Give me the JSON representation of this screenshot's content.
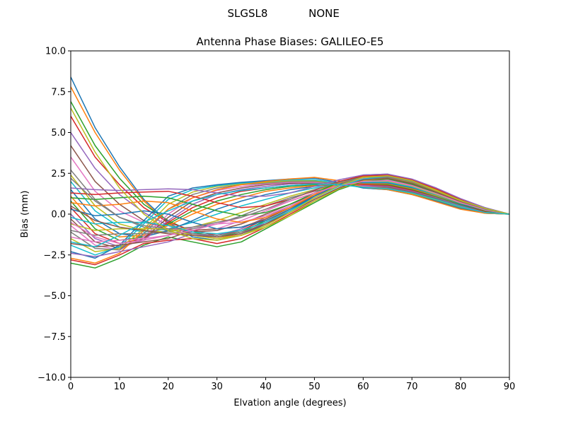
{
  "figure": {
    "suptitle_left": "SLGSL8",
    "suptitle_right": "NONE"
  },
  "chart_data": {
    "type": "line",
    "title": "Antenna Phase Biases: GALILEO-E5",
    "xlabel": "Elvation angle (degrees)",
    "ylabel": "Bias (mm)",
    "xlim": [
      0,
      90
    ],
    "ylim": [
      -10,
      10
    ],
    "xticks": [
      0,
      10,
      20,
      30,
      40,
      50,
      60,
      70,
      80,
      90
    ],
    "xtick_labels": [
      "0",
      "10",
      "20",
      "30",
      "40",
      "50",
      "60",
      "70",
      "80",
      "90"
    ],
    "yticks": [
      10,
      7.5,
      5,
      2.5,
      0,
      -2.5,
      -5,
      -7.5,
      -10
    ],
    "ytick_labels": [
      "10.0",
      "7.5",
      "5.0",
      "2.5",
      "0.0",
      "−2.5",
      "−5.0",
      "−7.5",
      "−10.0"
    ],
    "grid": false,
    "legend": "none",
    "colors": [
      "#1f77b4",
      "#ff7f0e",
      "#2ca02c",
      "#d62728",
      "#9467bd",
      "#8c564b",
      "#e377c2",
      "#7f7f7f",
      "#bcbd22",
      "#17becf"
    ],
    "x": [
      0,
      5,
      10,
      15,
      20,
      25,
      30,
      35,
      40,
      45,
      50,
      55,
      60,
      65,
      70,
      75,
      80,
      85,
      90
    ],
    "series": [
      {
        "values": [
          8.4,
          5.3,
          2.9,
          0.9,
          -0.5,
          -1.4,
          -1.6,
          -1.3,
          -0.6,
          0.2,
          1.1,
          1.9,
          2.4,
          2.45,
          2.1,
          1.5,
          0.9,
          0.4,
          0.0
        ]
      },
      {
        "values": [
          7.8,
          5.0,
          2.7,
          0.8,
          -0.6,
          -1.3,
          -1.5,
          -1.2,
          -0.5,
          0.3,
          1.2,
          1.85,
          2.3,
          2.35,
          2.0,
          1.45,
          0.85,
          0.35,
          0.0
        ]
      },
      {
        "values": [
          6.9,
          4.2,
          2.2,
          0.6,
          -0.4,
          -1.1,
          -1.4,
          -1.1,
          -0.4,
          0.3,
          1.1,
          1.8,
          2.2,
          2.3,
          1.95,
          1.4,
          0.8,
          0.3,
          0.0
        ]
      },
      {
        "values": [
          6.0,
          3.5,
          1.8,
          0.4,
          -0.5,
          -1.0,
          -1.3,
          -1.0,
          -0.3,
          0.4,
          1.2,
          1.8,
          2.2,
          2.25,
          1.9,
          1.35,
          0.8,
          0.3,
          0.0
        ]
      },
      {
        "values": [
          5.0,
          2.8,
          1.2,
          0.1,
          -0.7,
          -1.2,
          -1.3,
          -0.9,
          -0.2,
          0.5,
          1.2,
          1.75,
          2.1,
          2.2,
          1.85,
          1.3,
          0.75,
          0.3,
          0.0
        ]
      },
      {
        "values": [
          4.2,
          2.0,
          0.6,
          -0.4,
          -0.9,
          -1.1,
          -1.0,
          -0.6,
          0.0,
          0.6,
          1.2,
          1.7,
          2.1,
          2.15,
          1.8,
          1.3,
          0.7,
          0.25,
          0.0
        ]
      },
      {
        "values": [
          3.5,
          1.4,
          0.2,
          -0.5,
          -0.9,
          -1.0,
          -0.9,
          -0.4,
          0.2,
          0.8,
          1.3,
          1.75,
          2.0,
          2.1,
          1.75,
          1.25,
          0.7,
          0.25,
          0.0
        ]
      },
      {
        "values": [
          2.7,
          0.9,
          -0.2,
          -0.8,
          -1.0,
          -0.9,
          -0.6,
          -0.1,
          0.5,
          1.0,
          1.4,
          1.75,
          2.0,
          2.05,
          1.7,
          1.2,
          0.65,
          0.2,
          0.0
        ]
      },
      {
        "values": [
          2.4,
          0.5,
          -0.6,
          -1.0,
          -1.1,
          -0.8,
          -0.4,
          0.1,
          0.6,
          1.1,
          1.5,
          1.8,
          2.0,
          2.0,
          1.7,
          1.2,
          0.65,
          0.2,
          0.0
        ]
      },
      {
        "values": [
          2.0,
          0.2,
          -0.8,
          -1.1,
          -0.9,
          -0.5,
          0.0,
          0.5,
          0.9,
          1.3,
          1.6,
          1.8,
          1.95,
          1.95,
          1.65,
          1.15,
          0.6,
          0.2,
          0.0
        ]
      },
      {
        "values": [
          1.5,
          -0.3,
          -1.2,
          -1.4,
          -1.0,
          -0.4,
          0.3,
          0.8,
          1.2,
          1.5,
          1.7,
          1.85,
          1.9,
          1.9,
          1.6,
          1.1,
          0.6,
          0.2,
          0.0
        ]
      },
      {
        "values": [
          1.1,
          -0.6,
          -1.4,
          -1.3,
          -0.7,
          0.0,
          0.6,
          1.0,
          1.4,
          1.6,
          1.75,
          1.85,
          1.85,
          1.85,
          1.55,
          1.1,
          0.55,
          0.15,
          0.0
        ]
      },
      {
        "values": [
          0.8,
          -0.9,
          -1.6,
          -1.4,
          -0.6,
          0.2,
          0.8,
          1.2,
          1.5,
          1.7,
          1.8,
          1.85,
          1.8,
          1.8,
          1.5,
          1.05,
          0.55,
          0.15,
          0.0
        ]
      },
      {
        "values": [
          0.4,
          -1.2,
          -1.8,
          -1.5,
          -0.5,
          0.4,
          1.0,
          1.4,
          1.6,
          1.75,
          1.85,
          1.85,
          1.8,
          1.75,
          1.45,
          1.0,
          0.5,
          0.15,
          0.0
        ]
      },
      {
        "values": [
          0.0,
          -1.5,
          -2.0,
          -1.6,
          -0.4,
          0.6,
          1.2,
          1.5,
          1.7,
          1.85,
          1.9,
          1.85,
          1.75,
          1.7,
          1.4,
          1.0,
          0.5,
          0.1,
          0.0
        ]
      },
      {
        "values": [
          -0.3,
          -1.7,
          -2.1,
          -1.5,
          -0.2,
          0.8,
          1.3,
          1.6,
          1.8,
          1.9,
          1.9,
          1.85,
          1.7,
          1.65,
          1.35,
          0.95,
          0.45,
          0.1,
          0.0
        ]
      },
      {
        "values": [
          -0.7,
          -1.9,
          -2.2,
          -1.4,
          0.0,
          1.0,
          1.45,
          1.7,
          1.85,
          1.95,
          1.95,
          1.85,
          1.7,
          1.6,
          1.3,
          0.9,
          0.45,
          0.1,
          0.0
        ]
      },
      {
        "values": [
          -1.1,
          -2.1,
          -2.2,
          -1.2,
          0.3,
          1.2,
          1.6,
          1.8,
          1.9,
          2.0,
          2.0,
          1.85,
          1.65,
          1.6,
          1.3,
          0.9,
          0.4,
          0.1,
          0.0
        ]
      },
      {
        "values": [
          -1.5,
          -2.3,
          -2.1,
          -0.9,
          0.6,
          1.35,
          1.7,
          1.85,
          1.95,
          2.05,
          2.05,
          1.9,
          1.65,
          1.55,
          1.25,
          0.85,
          0.4,
          0.05,
          0.0
        ]
      },
      {
        "values": [
          -1.9,
          -2.5,
          -2.0,
          -0.6,
          0.9,
          1.5,
          1.75,
          1.9,
          2.0,
          2.1,
          2.1,
          1.9,
          1.6,
          1.5,
          1.2,
          0.8,
          0.35,
          0.05,
          0.0
        ]
      },
      {
        "values": [
          -2.3,
          -2.7,
          -1.9,
          -0.4,
          1.1,
          1.6,
          1.8,
          1.95,
          2.05,
          2.15,
          2.2,
          1.95,
          1.6,
          1.5,
          1.2,
          0.8,
          0.35,
          0.05,
          0.0
        ]
      },
      {
        "values": [
          -2.7,
          -3.0,
          -2.4,
          -1.0,
          0.3,
          1.0,
          1.5,
          1.8,
          2.0,
          2.15,
          2.25,
          2.05,
          1.65,
          1.5,
          1.2,
          0.75,
          0.3,
          0.05,
          0.0
        ]
      },
      {
        "values": [
          -3.0,
          -3.3,
          -2.7,
          -1.9,
          -1.4,
          -1.7,
          -2.0,
          -1.7,
          -0.9,
          -0.1,
          0.7,
          1.5,
          2.0,
          2.15,
          1.85,
          1.3,
          0.7,
          0.2,
          0.0
        ]
      },
      {
        "values": [
          -2.8,
          -3.1,
          -2.5,
          -1.8,
          -1.6,
          -1.5,
          -1.8,
          -1.5,
          -0.8,
          0.0,
          0.8,
          1.55,
          2.05,
          2.2,
          1.9,
          1.35,
          0.75,
          0.25,
          0.0
        ]
      },
      {
        "values": [
          -2.4,
          -2.6,
          -2.3,
          -2.0,
          -1.7,
          -1.2,
          -1.4,
          -1.2,
          -0.5,
          0.2,
          1.0,
          1.7,
          2.1,
          2.2,
          1.9,
          1.35,
          0.75,
          0.25,
          0.0
        ]
      },
      {
        "values": [
          -1.8,
          -2.0,
          -1.9,
          -1.7,
          -1.5,
          -1.0,
          -0.9,
          -0.8,
          -0.3,
          0.4,
          1.1,
          1.75,
          2.15,
          2.25,
          1.95,
          1.4,
          0.8,
          0.3,
          0.0
        ]
      },
      {
        "values": [
          -1.4,
          -1.7,
          -1.6,
          -1.5,
          -1.3,
          -0.8,
          -0.6,
          -0.5,
          -0.1,
          0.5,
          1.2,
          1.8,
          2.2,
          2.3,
          2.0,
          1.4,
          0.8,
          0.3,
          0.0
        ]
      },
      {
        "values": [
          -1.0,
          -1.3,
          -1.2,
          -1.2,
          -1.1,
          -1.2,
          -1.3,
          -1.1,
          -0.6,
          0.1,
          0.9,
          1.6,
          2.1,
          2.25,
          1.95,
          1.4,
          0.8,
          0.3,
          0.0
        ]
      },
      {
        "values": [
          -0.6,
          -1.0,
          -0.9,
          -0.9,
          -0.9,
          -1.3,
          -1.5,
          -1.3,
          -0.8,
          -0.1,
          0.8,
          1.55,
          2.05,
          2.2,
          1.95,
          1.4,
          0.8,
          0.3,
          0.0
        ]
      },
      {
        "values": [
          -0.2,
          -0.6,
          -0.5,
          -0.5,
          -0.7,
          -1.1,
          -1.2,
          -1.0,
          -0.5,
          0.2,
          1.0,
          1.7,
          2.15,
          2.3,
          2.0,
          1.45,
          0.85,
          0.3,
          0.0
        ]
      },
      {
        "values": [
          0.3,
          -0.1,
          0.0,
          0.2,
          0.0,
          -0.5,
          -0.9,
          -0.8,
          -0.4,
          0.3,
          1.1,
          1.8,
          2.25,
          2.35,
          2.05,
          1.5,
          0.9,
          0.35,
          0.0
        ]
      },
      {
        "values": [
          0.7,
          0.5,
          0.6,
          0.8,
          0.7,
          0.2,
          -0.3,
          -0.5,
          -0.2,
          0.4,
          1.2,
          1.9,
          2.3,
          2.4,
          2.1,
          1.5,
          0.9,
          0.35,
          0.0
        ]
      },
      {
        "values": [
          1.0,
          0.9,
          1.0,
          1.1,
          1.0,
          0.6,
          0.2,
          -0.1,
          0.1,
          0.6,
          1.3,
          1.95,
          2.35,
          2.4,
          2.1,
          1.55,
          0.9,
          0.35,
          0.0
        ]
      },
      {
        "values": [
          1.3,
          1.2,
          1.3,
          1.35,
          1.4,
          1.1,
          0.7,
          0.4,
          0.5,
          0.9,
          1.45,
          2.0,
          2.35,
          2.4,
          2.1,
          1.55,
          0.9,
          0.35,
          0.0
        ]
      },
      {
        "values": [
          1.6,
          1.5,
          1.45,
          1.5,
          1.55,
          1.5,
          1.3,
          1.1,
          1.1,
          1.3,
          1.7,
          2.1,
          2.4,
          2.45,
          2.15,
          1.6,
          0.95,
          0.4,
          0.0
        ]
      },
      {
        "values": [
          0.5,
          -0.4,
          -0.8,
          -1.0,
          -1.2,
          -1.3,
          -1.4,
          -1.2,
          -0.6,
          0.1,
          0.9,
          1.6,
          2.1,
          2.2,
          1.9,
          1.35,
          0.75,
          0.25,
          0.0
        ]
      },
      {
        "values": [
          -0.5,
          -1.4,
          -1.8,
          -1.6,
          -1.3,
          -1.0,
          -0.6,
          -0.2,
          0.3,
          0.8,
          1.3,
          1.75,
          2.0,
          2.05,
          1.75,
          1.25,
          0.7,
          0.25,
          0.0
        ]
      },
      {
        "values": [
          2.2,
          0.8,
          -0.2,
          -0.7,
          -0.9,
          -0.8,
          -0.5,
          -0.2,
          0.3,
          0.9,
          1.5,
          1.95,
          2.25,
          2.3,
          2.0,
          1.45,
          0.85,
          0.3,
          0.0
        ]
      },
      {
        "values": [
          6.5,
          3.8,
          1.6,
          0.0,
          -1.0,
          -1.5,
          -1.6,
          -1.3,
          -0.7,
          0.1,
          1.0,
          1.75,
          2.25,
          2.35,
          2.05,
          1.45,
          0.85,
          0.35,
          0.0
        ]
      },
      {
        "values": [
          -1.7,
          -2.0,
          -1.3,
          -0.5,
          0.2,
          0.8,
          1.2,
          1.45,
          1.6,
          1.75,
          1.85,
          1.8,
          1.65,
          1.55,
          1.3,
          0.9,
          0.45,
          0.1,
          0.0
        ]
      }
    ]
  }
}
